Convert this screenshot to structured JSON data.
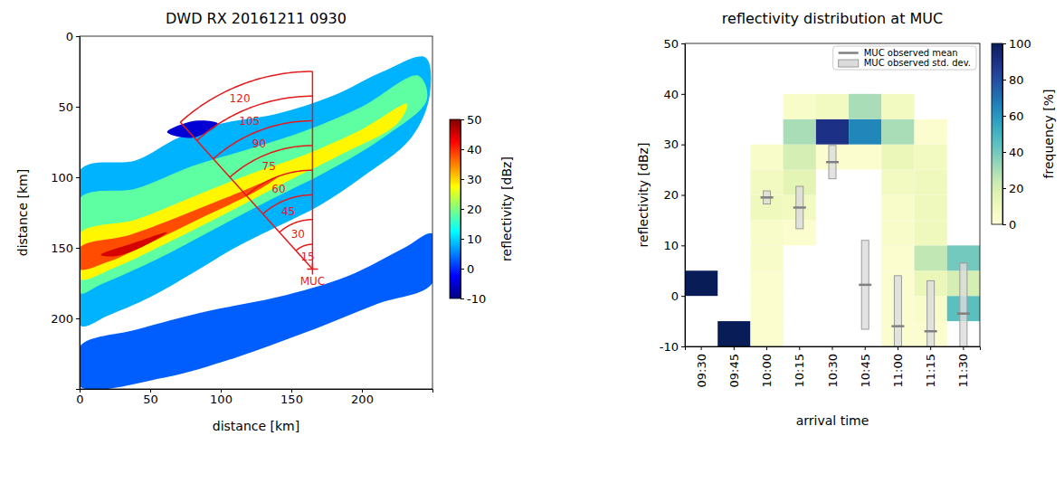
{
  "chart_data": [
    {
      "type": "image",
      "title": "DWD RX 20161211 0930",
      "x_label": "distance [km]",
      "y_label": "distance [km]",
      "xlim": [
        0,
        250
      ],
      "xticks": [
        0,
        50,
        100,
        150,
        200
      ],
      "ylim": [
        250,
        0
      ],
      "yticks": [
        0,
        50,
        100,
        150,
        200
      ],
      "colorbar": {
        "label": "reflectivity [dBz]",
        "range": [
          -10,
          50
        ],
        "ticks": [
          -10,
          0,
          10,
          20,
          30,
          40,
          50
        ]
      },
      "regions": [
        {
          "reflectivity": 3,
          "points": [
            [
              0,
              220
            ],
            [
              40,
              208
            ],
            [
              90,
              195
            ],
            [
              140,
              185
            ],
            [
              190,
              170
            ],
            [
              230,
              150
            ],
            [
              250,
              140
            ],
            [
              250,
              175
            ],
            [
              210,
              190
            ],
            [
              160,
              210
            ],
            [
              110,
              228
            ],
            [
              60,
              242
            ],
            [
              0,
              248
            ]
          ]
        },
        {
          "reflectivity": 8,
          "points": [
            [
              0,
              95
            ],
            [
              40,
              88
            ],
            [
              70,
              72
            ],
            [
              100,
              62
            ],
            [
              140,
              55
            ],
            [
              180,
              42
            ],
            [
              215,
              25
            ],
            [
              245,
              15
            ],
            [
              248,
              42
            ],
            [
              235,
              72
            ],
            [
              200,
              100
            ],
            [
              170,
              120
            ],
            [
              140,
              135
            ],
            [
              110,
              150
            ],
            [
              80,
              168
            ],
            [
              50,
              185
            ],
            [
              20,
              198
            ],
            [
              0,
              205
            ]
          ]
        },
        {
          "reflectivity": -5,
          "points": [
            [
              62,
              68
            ],
            [
              82,
              60
            ],
            [
              98,
              62
            ],
            [
              80,
              72
            ]
          ]
        },
        {
          "reflectivity": 18,
          "points": [
            [
              0,
              115
            ],
            [
              40,
              108
            ],
            [
              80,
              92
            ],
            [
              120,
              80
            ],
            [
              160,
              67
            ],
            [
              200,
              50
            ],
            [
              240,
              28
            ],
            [
              246,
              45
            ],
            [
              215,
              72
            ],
            [
              175,
              96
            ],
            [
              135,
              116
            ],
            [
              95,
              137
            ],
            [
              55,
              158
            ],
            [
              15,
              176
            ],
            [
              0,
              182
            ]
          ]
        },
        {
          "reflectivity": 28,
          "points": [
            [
              0,
              140
            ],
            [
              40,
              130
            ],
            [
              80,
              114
            ],
            [
              120,
              98
            ],
            [
              160,
              84
            ],
            [
              200,
              66
            ],
            [
              232,
              48
            ],
            [
              225,
              62
            ],
            [
              185,
              84
            ],
            [
              145,
              104
            ],
            [
              105,
              125
            ],
            [
              65,
              145
            ],
            [
              25,
              164
            ],
            [
              0,
              172
            ]
          ]
        },
        {
          "reflectivity": 38,
          "points": [
            [
              0,
              150
            ],
            [
              35,
              141
            ],
            [
              70,
              128
            ],
            [
              105,
              114
            ],
            [
              140,
              100
            ],
            [
              125,
              110
            ],
            [
              90,
              127
            ],
            [
              55,
              144
            ],
            [
              20,
              160
            ],
            [
              0,
              165
            ]
          ]
        },
        {
          "reflectivity": 45,
          "points": [
            [
              15,
              155
            ],
            [
              40,
              146
            ],
            [
              62,
              139
            ],
            [
              45,
              149
            ],
            [
              25,
              156
            ]
          ]
        }
      ],
      "sector": {
        "label": "MUC",
        "color": "#e31a1c",
        "center": [
          165,
          165
        ],
        "bearings": [
          318,
          360
        ],
        "arcs": [
          {
            "radius": 17.5,
            "label": "15"
          },
          {
            "radius": 35,
            "label": "30"
          },
          {
            "radius": 52.5,
            "label": "45"
          },
          {
            "radius": 70,
            "label": "60"
          },
          {
            "radius": 87.5,
            "label": "75"
          },
          {
            "radius": 105,
            "label": "90"
          },
          {
            "radius": 122.5,
            "label": "105"
          },
          {
            "radius": 140,
            "label": "120"
          }
        ]
      }
    },
    {
      "type": "heatmap",
      "title": "reflectivity distribution at MUC",
      "x_label": "arrival time",
      "y_label": "reflectivity [dBz]",
      "categories": [
        "09:30",
        "09:45",
        "10:00",
        "10:15",
        "10:30",
        "10:45",
        "11:00",
        "11:15",
        "11:30"
      ],
      "ylim": [
        -10,
        50
      ],
      "yticks": [
        -10,
        0,
        10,
        20,
        30,
        40,
        50
      ],
      "bins": [
        -10,
        -5,
        0,
        5,
        10,
        15,
        20,
        25,
        30,
        35,
        40,
        45,
        50
      ],
      "cells": [
        [
          null,
          null,
          100,
          null,
          null,
          null,
          null,
          null,
          null,
          null,
          null,
          null
        ],
        [
          100,
          null,
          null,
          null,
          null,
          null,
          null,
          null,
          null,
          null,
          null,
          null
        ],
        [
          3,
          3,
          3,
          5,
          5,
          10,
          8,
          5,
          null,
          null,
          null,
          null
        ],
        [
          null,
          null,
          null,
          null,
          3,
          8,
          15,
          20,
          30,
          5,
          null,
          null
        ],
        [
          null,
          null,
          null,
          null,
          null,
          null,
          null,
          3,
          90,
          8,
          null,
          null
        ],
        [
          null,
          null,
          null,
          null,
          null,
          null,
          null,
          3,
          65,
          30,
          null,
          null
        ],
        [
          3,
          3,
          3,
          3,
          5,
          5,
          8,
          12,
          30,
          8,
          null,
          null
        ],
        [
          3,
          5,
          12,
          25,
          10,
          10,
          10,
          8,
          3,
          null,
          null,
          null
        ],
        [
          null,
          45,
          20,
          40,
          null,
          null,
          null,
          null,
          null,
          null,
          null,
          null
        ]
      ],
      "colorbar": {
        "label": "frequency [%]",
        "range": [
          0,
          100
        ],
        "ticks": [
          0,
          20,
          40,
          60,
          80,
          100
        ]
      },
      "series": [
        {
          "name": "MUC observed mean",
          "color": "#808080",
          "values": [
            null,
            null,
            19.5,
            17.5,
            26.5,
            2.2,
            -6,
            -7,
            -3.5
          ]
        },
        {
          "name": "MUC observed std. dev.",
          "color": "#dcdcdc",
          "values": [
            null,
            null,
            1.3,
            4.2,
            3.3,
            8.8,
            10,
            10,
            10
          ]
        }
      ],
      "legend": "upper right"
    }
  ]
}
